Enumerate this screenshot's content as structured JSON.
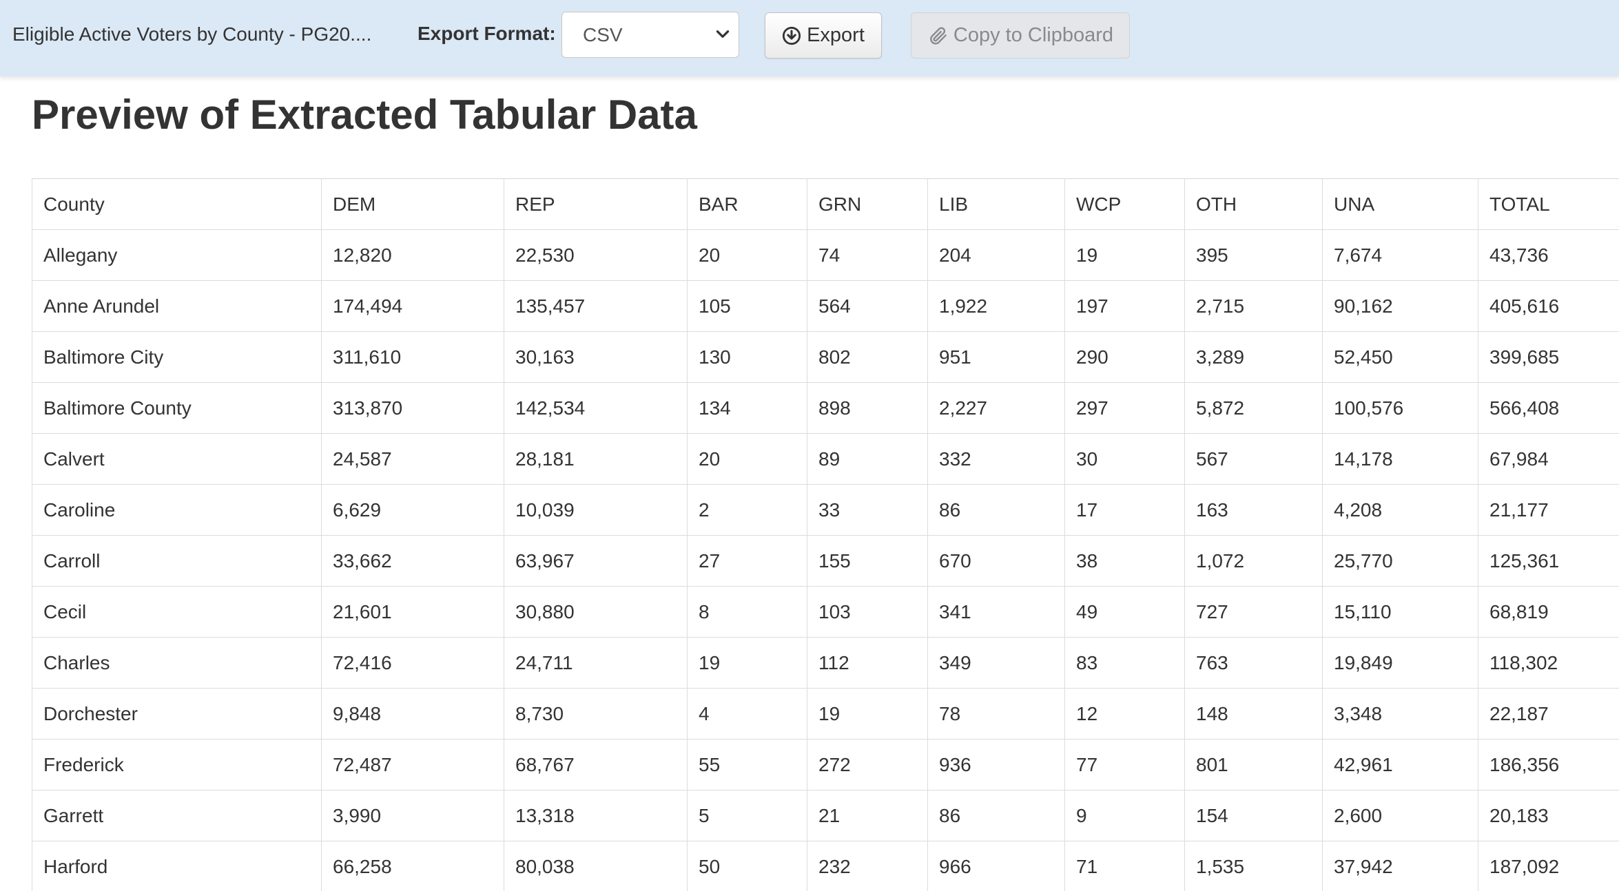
{
  "toolbar": {
    "doc_title": "Eligible Active Voters by County - PG20....",
    "export_format_label": "Export Format:",
    "export_format_value": "CSV",
    "export_button_label": "Export",
    "copy_button_label": "Copy to Clipboard"
  },
  "icons": {
    "select_caret": "chevron-down-icon",
    "export": "download-circle-icon",
    "copy": "paperclip-icon"
  },
  "colors": {
    "toolbar_bg": "#dbe8f5",
    "text": "#333333",
    "disabled_text": "#8a8a8a",
    "table_border": "#dcdcdc"
  },
  "main": {
    "title": "Preview of Extracted Tabular Data"
  },
  "table": {
    "columns": [
      "County",
      "DEM",
      "REP",
      "BAR",
      "GRN",
      "LIB",
      "WCP",
      "OTH",
      "UNA",
      "TOTAL"
    ],
    "rows": [
      [
        "Allegany",
        "12,820",
        "22,530",
        "20",
        "74",
        "204",
        "19",
        "395",
        "7,674",
        "43,736"
      ],
      [
        "Anne Arundel",
        "174,494",
        "135,457",
        "105",
        "564",
        "1,922",
        "197",
        "2,715",
        "90,162",
        "405,616"
      ],
      [
        "Baltimore City",
        "311,610",
        "30,163",
        "130",
        "802",
        "951",
        "290",
        "3,289",
        "52,450",
        "399,685"
      ],
      [
        "Baltimore County",
        "313,870",
        "142,534",
        "134",
        "898",
        "2,227",
        "297",
        "5,872",
        "100,576",
        "566,408"
      ],
      [
        "Calvert",
        "24,587",
        "28,181",
        "20",
        "89",
        "332",
        "30",
        "567",
        "14,178",
        "67,984"
      ],
      [
        "Caroline",
        "6,629",
        "10,039",
        "2",
        "33",
        "86",
        "17",
        "163",
        "4,208",
        "21,177"
      ],
      [
        "Carroll",
        "33,662",
        "63,967",
        "27",
        "155",
        "670",
        "38",
        "1,072",
        "25,770",
        "125,361"
      ],
      [
        "Cecil",
        "21,601",
        "30,880",
        "8",
        "103",
        "341",
        "49",
        "727",
        "15,110",
        "68,819"
      ],
      [
        "Charles",
        "72,416",
        "24,711",
        "19",
        "112",
        "349",
        "83",
        "763",
        "19,849",
        "118,302"
      ],
      [
        "Dorchester",
        "9,848",
        "8,730",
        "4",
        "19",
        "78",
        "12",
        "148",
        "3,348",
        "22,187"
      ],
      [
        "Frederick",
        "72,487",
        "68,767",
        "55",
        "272",
        "936",
        "77",
        "801",
        "42,961",
        "186,356"
      ],
      [
        "Garrett",
        "3,990",
        "13,318",
        "5",
        "21",
        "86",
        "9",
        "154",
        "2,600",
        "20,183"
      ],
      [
        "Harford",
        "66,258",
        "80,038",
        "50",
        "232",
        "966",
        "71",
        "1,535",
        "37,942",
        "187,092"
      ]
    ]
  }
}
